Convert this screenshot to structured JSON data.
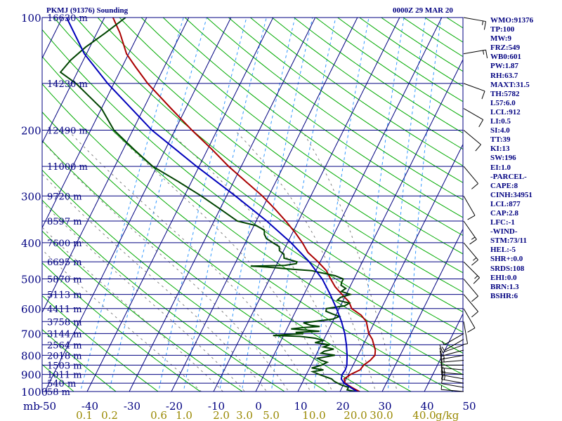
{
  "header": {
    "station": "PKMJ (91376) Sounding",
    "time": "0000Z 29 MAR 20"
  },
  "indices": [
    "WMO:91376",
    "TP:100",
    "MW:9",
    "FRZ:549",
    "WB0:601",
    "PW:1.87",
    "RH:63.7",
    "MAXT:31.5",
    "TH:5782",
    "L57:6.0",
    "LCL:912",
    "LI:0.5",
    "SI:4.0",
    "TT:39",
    "KI:13",
    "SW:196",
    "EI:1.0",
    "-PARCEL-",
    "CAPE:8",
    "CINH:34951",
    "LCL:877",
    "CAP:2.8",
    "LFC:-1",
    "-WIND-",
    "STM:73/11",
    "HEL:-5",
    "SHR+:0.0",
    "SRDS:108",
    "EHI:0.0",
    "BRN:1.3",
    "BSHR:6"
  ],
  "colors": {
    "isobar": "#000080",
    "isotherm": "#000080",
    "dry_adiabat": "#00aa00",
    "moist_adiabat": "#808080",
    "mixing_ratio": "#3399ff",
    "temperature": "#aa0000",
    "dewpoint": "#004400",
    "parcel": "#0000bb",
    "label": "#000080",
    "mixing_label": "#998800",
    "wind": "#000000"
  },
  "chart_data": {
    "type": "line",
    "title": "PKMJ (91376) Sounding",
    "subtitle": "0000Z 29 MAR 20",
    "x_axis": {
      "unit": "mb",
      "range": [
        -50,
        50
      ],
      "ticks": [
        "-50",
        "-40",
        "-30",
        "-20",
        "-10",
        "0",
        "10",
        "20",
        "30",
        "40",
        "50"
      ]
    },
    "y_axis": {
      "scale": "log",
      "range": [
        1000,
        100
      ],
      "ticks": [
        "100",
        "200",
        "300",
        "400",
        "500",
        "600",
        "700",
        "800",
        "900",
        "1000"
      ]
    },
    "mixing_ratio_axis": {
      "unit": "g/kg",
      "ticks": [
        "0.1",
        "0.2",
        "0.6",
        "1.0",
        "2.0",
        "3.0",
        "5.0",
        "10.0",
        "20.0",
        "30.0",
        "40.0"
      ]
    },
    "height_labels": [
      {
        "p": 100,
        "label": "16630 m"
      },
      {
        "p": 150,
        "label": "14230 m"
      },
      {
        "p": 200,
        "label": "12490 m"
      },
      {
        "p": 250,
        "label": "11000 m"
      },
      {
        "p": 300,
        "label": "9720 m"
      },
      {
        "p": 350,
        "label": "8597 m"
      },
      {
        "p": 400,
        "label": "7600 m"
      },
      {
        "p": 450,
        "label": "6695 m"
      },
      {
        "p": 500,
        "label": "5870 m"
      },
      {
        "p": 550,
        "label": "5113 m"
      },
      {
        "p": 600,
        "label": "4411 m"
      },
      {
        "p": 650,
        "label": "3758 m"
      },
      {
        "p": 700,
        "label": "3144 m"
      },
      {
        "p": 750,
        "label": "2564 m"
      },
      {
        "p": 800,
        "label": "2018 m"
      },
      {
        "p": 850,
        "label": "1503 m"
      },
      {
        "p": 900,
        "label": "1011 m"
      },
      {
        "p": 950,
        "label": "540 m"
      },
      {
        "p": 1000,
        "label": "58 m"
      }
    ],
    "series": [
      {
        "key": "temperature",
        "points": [
          [
            1013,
            25.5
          ],
          [
            1000,
            24.6
          ],
          [
            975,
            22.3
          ],
          [
            950,
            20.2
          ],
          [
            925,
            19.5
          ],
          [
            900,
            20.5
          ],
          [
            875,
            22.2
          ],
          [
            850,
            22.5
          ],
          [
            825,
            23.5
          ],
          [
            800,
            24
          ],
          [
            775,
            23.5
          ],
          [
            750,
            22.5
          ],
          [
            725,
            21.5
          ],
          [
            700,
            20
          ],
          [
            675,
            19
          ],
          [
            650,
            18
          ],
          [
            625,
            16
          ],
          [
            600,
            13
          ],
          [
            575,
            11.5
          ],
          [
            550,
            9
          ],
          [
            525,
            6.5
          ],
          [
            500,
            4.5
          ],
          [
            475,
            2.5
          ],
          [
            450,
            -0.5
          ],
          [
            425,
            -4
          ],
          [
            400,
            -6.5
          ],
          [
            375,
            -9.5
          ],
          [
            350,
            -13
          ],
          [
            325,
            -17
          ],
          [
            300,
            -21.5
          ],
          [
            275,
            -27
          ],
          [
            250,
            -33
          ],
          [
            225,
            -39
          ],
          [
            200,
            -46
          ],
          [
            175,
            -53.5
          ],
          [
            150,
            -62
          ],
          [
            135,
            -67
          ],
          [
            125,
            -70.5
          ],
          [
            110,
            -74.5
          ],
          [
            100,
            -78
          ]
        ]
      },
      {
        "key": "dewpoint",
        "points": [
          [
            1013,
            25
          ],
          [
            1000,
            23.6
          ],
          [
            990,
            21.5
          ],
          [
            975,
            21.5
          ],
          [
            960,
            19.5
          ],
          [
            950,
            18.5
          ],
          [
            940,
            17.5
          ],
          [
            925,
            16.5
          ],
          [
            900,
            13
          ],
          [
            885,
            11.2
          ],
          [
            875,
            13.5
          ],
          [
            865,
            10.5
          ],
          [
            850,
            12.5
          ],
          [
            835,
            13.5
          ],
          [
            825,
            11.8
          ],
          [
            815,
            10.8
          ],
          [
            800,
            14.5
          ],
          [
            790,
            11
          ],
          [
            780,
            11.5
          ],
          [
            770,
            13.5
          ],
          [
            760,
            10.8
          ],
          [
            750,
            12
          ],
          [
            740,
            8.3
          ],
          [
            730,
            10
          ],
          [
            720,
            7.8
          ],
          [
            712,
            4
          ],
          [
            708,
            -2.5
          ],
          [
            705,
            0
          ],
          [
            700,
            4.5
          ],
          [
            695,
            2.5
          ],
          [
            690,
            8
          ],
          [
            685,
            4.5
          ],
          [
            680,
            1
          ],
          [
            675,
            3.5
          ],
          [
            670,
            7.5
          ],
          [
            665,
            5.2
          ],
          [
            660,
            4.2
          ],
          [
            655,
            3.2
          ],
          [
            650,
            5.5
          ],
          [
            640,
            9.8
          ],
          [
            630,
            11
          ],
          [
            620,
            9
          ],
          [
            610,
            7.2
          ],
          [
            600,
            7
          ],
          [
            590,
            11
          ],
          [
            580,
            11.8
          ],
          [
            570,
            8.6
          ],
          [
            560,
            9
          ],
          [
            550,
            11
          ],
          [
            540,
            8.5
          ],
          [
            530,
            9.2
          ],
          [
            520,
            7.7
          ],
          [
            510,
            7.5
          ],
          [
            500,
            7.5
          ],
          [
            490,
            5.2
          ],
          [
            480,
            1
          ],
          [
            475,
            -1
          ],
          [
            470,
            -6.8
          ],
          [
            466,
            -10.5
          ],
          [
            462,
            -16
          ],
          [
            460,
            -8
          ],
          [
            455,
            -5.5
          ],
          [
            450,
            -5.5
          ],
          [
            440,
            -9
          ],
          [
            430,
            -9.5
          ],
          [
            420,
            -11
          ],
          [
            410,
            -11.5
          ],
          [
            400,
            -13.5
          ],
          [
            390,
            -15.5
          ],
          [
            380,
            -16.5
          ],
          [
            370,
            -17
          ],
          [
            360,
            -19.5
          ],
          [
            350,
            -24.5
          ],
          [
            325,
            -30
          ],
          [
            300,
            -36
          ],
          [
            275,
            -43
          ],
          [
            250,
            -51
          ],
          [
            225,
            -57.5
          ],
          [
            200,
            -64.5
          ],
          [
            175,
            -70
          ],
          [
            150,
            -79
          ],
          [
            140,
            -84
          ],
          [
            130,
            -83
          ],
          [
            120,
            -81
          ],
          [
            110,
            -78
          ],
          [
            100,
            -75
          ]
        ]
      },
      {
        "key": "parcel",
        "points": [
          [
            1013,
            25.5
          ],
          [
            1000,
            24
          ],
          [
            975,
            22
          ],
          [
            950,
            20
          ],
          [
            925,
            18.8
          ],
          [
            900,
            18.5
          ],
          [
            875,
            18.7
          ],
          [
            850,
            18.5
          ],
          [
            800,
            17.4
          ],
          [
            750,
            16
          ],
          [
            700,
            14.3
          ],
          [
            650,
            12.1
          ],
          [
            600,
            9.4
          ],
          [
            550,
            6.2
          ],
          [
            500,
            2.5
          ],
          [
            450,
            -2.6
          ],
          [
            400,
            -9.2
          ],
          [
            350,
            -17.5
          ],
          [
            300,
            -27.9
          ],
          [
            250,
            -40.6
          ],
          [
            200,
            -55.5
          ],
          [
            150,
            -71.5
          ],
          [
            125,
            -80.5
          ],
          [
            100,
            -89
          ]
        ]
      }
    ],
    "wind_barbs": [
      {
        "p": 1000,
        "dir": 95,
        "spd": 5
      },
      {
        "p": 975,
        "dir": 100,
        "spd": 10
      },
      {
        "p": 950,
        "dir": 100,
        "spd": 15
      },
      {
        "p": 925,
        "dir": 100,
        "spd": 15
      },
      {
        "p": 900,
        "dir": 95,
        "spd": 15
      },
      {
        "p": 875,
        "dir": 95,
        "spd": 10
      },
      {
        "p": 850,
        "dir": 90,
        "spd": 10
      },
      {
        "p": 825,
        "dir": 85,
        "spd": 15
      },
      {
        "p": 800,
        "dir": 80,
        "spd": 15
      },
      {
        "p": 775,
        "dir": 75,
        "spd": 10
      },
      {
        "p": 750,
        "dir": 70,
        "spd": 10
      },
      {
        "p": 725,
        "dir": 60,
        "spd": 5
      },
      {
        "p": 700,
        "dir": 60,
        "spd": 5
      },
      {
        "p": 650,
        "dir": 350,
        "spd": 5
      },
      {
        "p": 600,
        "dir": 330,
        "spd": 10
      },
      {
        "p": 550,
        "dir": 320,
        "spd": 10
      },
      {
        "p": 500,
        "dir": 320,
        "spd": 10
      },
      {
        "p": 450,
        "dir": 315,
        "spd": 15
      },
      {
        "p": 400,
        "dir": 320,
        "spd": 15
      },
      {
        "p": 350,
        "dir": 325,
        "spd": 15
      },
      {
        "p": 300,
        "dir": 330,
        "spd": 10
      },
      {
        "p": 250,
        "dir": 320,
        "spd": 10
      },
      {
        "p": 200,
        "dir": 310,
        "spd": 10
      },
      {
        "p": 175,
        "dir": 300,
        "spd": 10
      },
      {
        "p": 150,
        "dir": 290,
        "spd": 10
      },
      {
        "p": 125,
        "dir": 260,
        "spd": 15
      },
      {
        "p": 100,
        "dir": 280,
        "spd": 15
      }
    ],
    "grid": true
  }
}
